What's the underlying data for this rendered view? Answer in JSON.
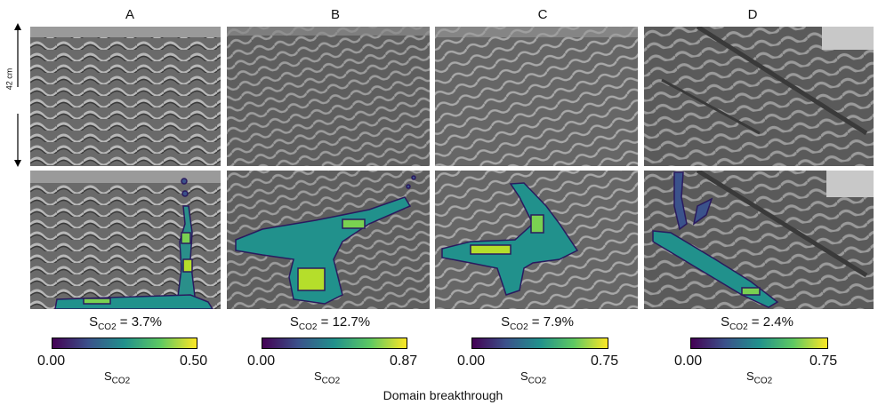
{
  "columns": [
    {
      "label": "A",
      "sat_prefix": "S",
      "sat_sub": "CO2",
      "sat_value": " = 3.7%",
      "cb_min": "0.00",
      "cb_max": "0.50",
      "cb_label": "S",
      "cb_sub": "CO2"
    },
    {
      "label": "B",
      "sat_prefix": "S",
      "sat_sub": "CO2",
      "sat_value": " = 12.7%",
      "cb_min": "0.00",
      "cb_max": "0.87",
      "cb_label": "S",
      "cb_sub": "CO2"
    },
    {
      "label": "C",
      "sat_prefix": "S",
      "sat_sub": "CO2",
      "sat_value": " = 7.9%",
      "cb_min": "0.00",
      "cb_max": "0.75",
      "cb_label": "S",
      "cb_sub": "CO2"
    },
    {
      "label": "D",
      "sat_prefix": "S",
      "sat_sub": "CO2",
      "sat_value": " = 2.4%",
      "cb_min": "0.00",
      "cb_max": "0.75",
      "cb_label": "S",
      "cb_sub": "CO2"
    }
  ],
  "scale_label": "42 cm",
  "footer": "Domain breakthrough",
  "colormap": [
    "#440154",
    "#3b528b",
    "#21918c",
    "#5ec962",
    "#fde725"
  ]
}
